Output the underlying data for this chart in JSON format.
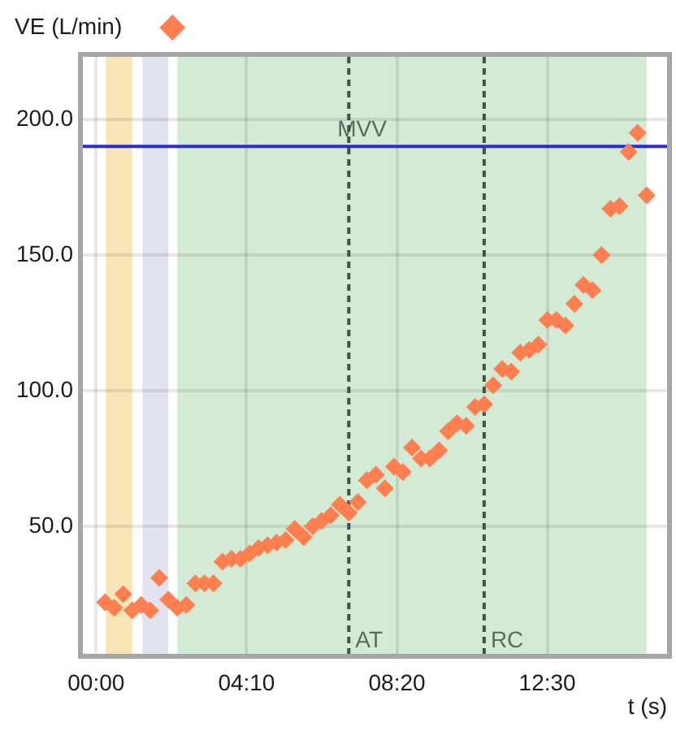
{
  "chart_data": {
    "type": "scatter",
    "xlabel": "t (s)",
    "x": [
      15,
      30,
      45,
      60,
      75,
      90,
      105,
      120,
      135,
      150,
      165,
      180,
      195,
      210,
      225,
      240,
      255,
      270,
      285,
      300,
      315,
      330,
      345,
      360,
      375,
      390,
      405,
      420,
      435,
      450,
      465,
      480,
      495,
      510,
      525,
      540,
      555,
      570,
      585,
      600,
      615,
      630,
      645,
      660,
      675,
      690,
      705,
      720,
      735,
      750,
      765,
      780,
      795,
      810,
      825,
      840,
      855,
      870,
      885,
      900,
      915
    ],
    "series": [
      {
        "name": "VE (L/min)",
        "color": "#ff7f50",
        "values": [
          22,
          20,
          25,
          19,
          21,
          19,
          31,
          23,
          20,
          21,
          29,
          29,
          29,
          37,
          38,
          38,
          40,
          42,
          43,
          44,
          45,
          49,
          46,
          50,
          52,
          54,
          58,
          55,
          59,
          67,
          69,
          64,
          72,
          70,
          79,
          75,
          75,
          78,
          85,
          88,
          87,
          94,
          95,
          102,
          108,
          107,
          114,
          115,
          117,
          126,
          126,
          124,
          132,
          139,
          137,
          150,
          167,
          168,
          188,
          195,
          172
        ]
      }
    ],
    "xlim": [
      -22,
      949
    ],
    "ylim": [
      3,
      223
    ],
    "xticks": [
      {
        "value": 0,
        "label": "00:00"
      },
      {
        "value": 250,
        "label": "04:10"
      },
      {
        "value": 500,
        "label": "08:20"
      },
      {
        "value": 750,
        "label": "12:30"
      }
    ],
    "yticks": [
      {
        "value": 50,
        "label": "50.0"
      },
      {
        "value": 100,
        "label": "100.0"
      },
      {
        "value": 150,
        "label": "150.0"
      },
      {
        "value": 200,
        "label": "200.0"
      }
    ],
    "grid": true,
    "legend": "top left",
    "marker": "diamond",
    "ref_lines": [
      {
        "axis": "y",
        "value": 190,
        "label": "MVV",
        "color": "#2b2bd9",
        "line_style": "solid"
      },
      {
        "axis": "x",
        "value": 420,
        "label": "AT",
        "color": "#3f5446",
        "line_style": "dashed"
      },
      {
        "axis": "x",
        "value": 645,
        "label": "RC",
        "color": "#3f5446",
        "line_style": "dashed"
      }
    ],
    "bands": [
      {
        "axis": "x",
        "from": 16,
        "to": 60,
        "color": "#f9e4b8"
      },
      {
        "axis": "x",
        "from": 77,
        "to": 120,
        "color": "#dfe4f0"
      },
      {
        "axis": "x",
        "from": 135,
        "to": 915,
        "color": "#d3ead5"
      }
    ]
  }
}
